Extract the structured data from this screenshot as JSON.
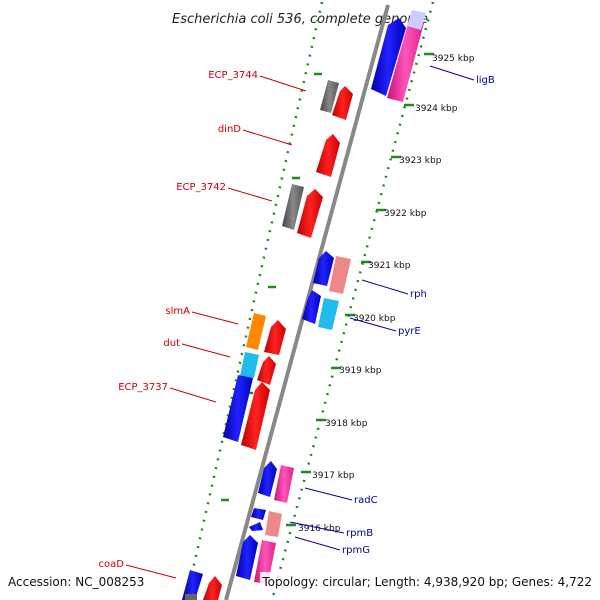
{
  "title": "Escherichia coli 536, complete genome",
  "footer": {
    "accession": "Accession: NC_008253",
    "topology": "Topology: circular; Length: 4,938,920 bp; Genes: 4,722"
  },
  "colors": {
    "backbone": "#888888",
    "tick_ring": "#228822",
    "gene_red": "#ee0000",
    "gene_blue": "#0000dd",
    "gene_pink": "#ee2299",
    "gene_gray": "#666666",
    "gene_orange": "#ff8800",
    "gene_cyan": "#22bbee",
    "gene_salmon": "#ee8888",
    "gene_lavender": "#ccccff",
    "label_left": "#cc0000",
    "label_right": "#000099"
  },
  "kbp_ticks": [
    "3925 kbp",
    "3924 kbp",
    "3923 kbp",
    "3922 kbp",
    "3921 kbp",
    "3920 kbp",
    "3919 kbp",
    "3918 kbp",
    "3917 kbp",
    "3916 kbp"
  ],
  "genes_left": [
    "ECP_3744",
    "dinD",
    "ECP_3742",
    "slmA",
    "dut",
    "ECP_3737",
    "coaD"
  ],
  "genes_right": [
    "ligB",
    "rph",
    "pyrE",
    "radC",
    "rpmB",
    "rpmG"
  ]
}
